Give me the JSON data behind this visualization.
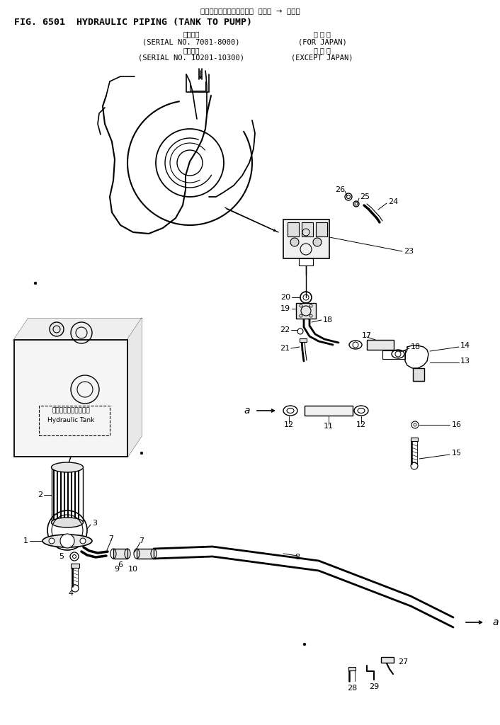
{
  "title_jp": "ハイドロリックパイピング  タンク  →  ポンプ",
  "title_en": "FIG. 6501  HYDRAULIC PIPING (TANK TO PUMP)",
  "serial1_jp": "適用号機",
  "serial1_range": "(SERIAL NO. 7001-8000)",
  "serial1_region_jp": "国 内 向",
  "serial1_region_en": "(FOR JAPAN)",
  "serial2_jp": "適用号機",
  "serial2_range": "(SERIAL NO. 10201-10300)",
  "serial2_region_jp": "海 外 向",
  "serial2_region_en": "(EXCEPT JAPAN)",
  "bg_color": "#ffffff",
  "line_color": "#000000",
  "tank_label_jp": "ハイドロリックタンク",
  "tank_label_en": "Hydraulic Tank"
}
